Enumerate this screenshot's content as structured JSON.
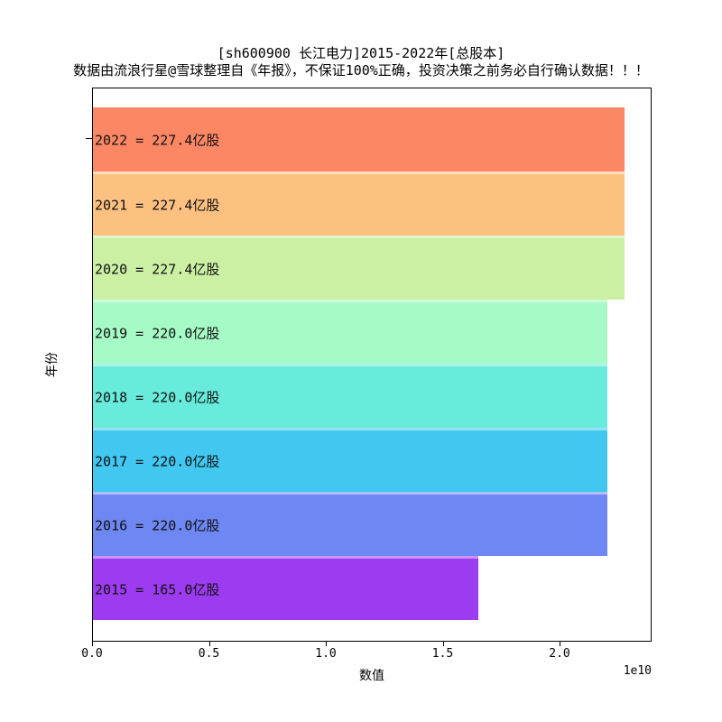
{
  "header": {
    "title": "[sh600900 长江电力]2015-2022年[总股本]",
    "subtitle": "数据由流浪行星@雪球整理自《年报》，不保证100%正确，投资决策之前务必自行确认数据！！！"
  },
  "chart_data": {
    "type": "bar",
    "orientation": "horizontal",
    "title": "[sh600900 长江电力]2015-2022年[总股本]",
    "subtitle": "数据由流浪行星@雪球整理自《年报》，不保证100%正确，投资决策之前务必自行确认数据！！！",
    "categories": [
      "2022",
      "2021",
      "2020",
      "2019",
      "2018",
      "2017",
      "2016",
      "2015"
    ],
    "values_yi_shares": [
      227.4,
      227.4,
      227.4,
      220.0,
      220.0,
      220.0,
      220.0,
      165.0
    ],
    "values_shares": [
      22740000000,
      22740000000,
      22740000000,
      22000000000,
      22000000000,
      22000000000,
      22000000000,
      16500000000
    ],
    "values_e10": [
      2.274,
      2.274,
      2.274,
      2.2,
      2.2,
      2.2,
      2.2,
      1.65
    ],
    "bar_labels": [
      "2022 = 227.4亿股",
      "2021 = 227.4亿股",
      "2020 = 227.4亿股",
      "2019 = 220.0亿股",
      "2018 = 220.0亿股",
      "2017 = 220.0亿股",
      "2016 = 220.0亿股",
      "2015 = 165.0亿股"
    ],
    "bar_colors": [
      "#FC8765",
      "#FCC181",
      "#CBEFA3",
      "#A5FAC5",
      "#68EBDB",
      "#41C7F0",
      "#6E87F2",
      "#9C3BF0"
    ],
    "xlabel": "数值",
    "ylabel": "年份",
    "x_ticks_e10": [
      0.0,
      0.5,
      1.0,
      1.5,
      2.0
    ],
    "x_tick_labels": [
      "0.0",
      "0.5",
      "1.0",
      "1.5",
      "2.0"
    ],
    "x_offset_label": "1e10",
    "xlim_e10": [
      0.0,
      2.39
    ],
    "grid": false,
    "legend": false,
    "plot_border_color": "#000000",
    "background_color": "#ffffff"
  }
}
